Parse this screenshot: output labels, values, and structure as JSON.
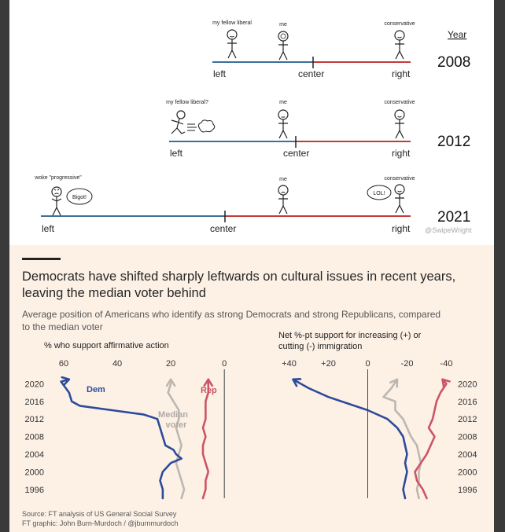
{
  "meme": {
    "year_header": "Year",
    "rows": [
      {
        "year": "2008",
        "left": "left",
        "center": "center",
        "right": "right",
        "labels": [
          "my fellow liberal",
          "me",
          "conservative"
        ]
      },
      {
        "year": "2012",
        "left": "left",
        "center": "center",
        "right": "right",
        "labels": [
          "my fellow liberal?",
          "me",
          "conservative"
        ]
      },
      {
        "year": "2021",
        "left": "left",
        "center": "center",
        "right": "right",
        "labels": [
          "woke \"progressive\"",
          "me",
          "conservative"
        ],
        "bubbles": [
          "Bigot!",
          "LOL!"
        ]
      }
    ],
    "handle": "@SwipeWright",
    "colors": {
      "left": "#3d6f99",
      "right": "#c43a3a"
    }
  },
  "ft": {
    "title": "Democrats have shifted sharply leftwards on cultural issues in recent years, leaving the median voter behind",
    "subtitle": "Average position of Americans who identify as strong Democrats and strong Republicans, compared to the median voter",
    "source": "Source: FT analysis of US General Social Survey",
    "credit": "FT graphic: John Burn-Murdoch / @jburnmurdoch"
  },
  "chart_data": [
    {
      "type": "line",
      "title": "% who support affirmative action",
      "x_ticks": [
        60,
        40,
        20,
        0
      ],
      "xlim": [
        65,
        -2
      ],
      "y_ticks": [
        2020,
        2016,
        2012,
        2008,
        2004,
        2000,
        1996
      ],
      "ylim": [
        1994,
        2021.5
      ],
      "series": [
        {
          "name": "Dem",
          "color": "#2d4b9a",
          "points": [
            [
              23,
              1994
            ],
            [
              23,
              1996
            ],
            [
              24,
              1998
            ],
            [
              23,
              2000
            ],
            [
              20,
              2002
            ],
            [
              16,
              2003
            ],
            [
              18,
              2004
            ],
            [
              19,
              2005
            ],
            [
              22,
              2006
            ],
            [
              23,
              2008
            ],
            [
              24,
              2010
            ],
            [
              25,
              2012
            ],
            [
              30,
              2013
            ],
            [
              42,
              2014
            ],
            [
              54,
              2015
            ],
            [
              57,
              2016
            ],
            [
              58,
              2018
            ],
            [
              61,
              2020.5
            ],
            [
              58,
              2021
            ]
          ]
        },
        {
          "name": "Median voter",
          "color": "#bdb7b1",
          "points": [
            [
              16,
              1994
            ],
            [
              15,
              1996
            ],
            [
              16,
              1998
            ],
            [
              17,
              2000
            ],
            [
              18,
              2002
            ],
            [
              17,
              2004
            ],
            [
              16,
              2006
            ],
            [
              17,
              2008
            ],
            [
              18,
              2010
            ],
            [
              17,
              2012
            ],
            [
              17,
              2014
            ],
            [
              19,
              2016
            ],
            [
              21,
              2018
            ],
            [
              20,
              2020
            ],
            [
              20,
              2021
            ]
          ]
        },
        {
          "name": "Rep",
          "color": "#cc5566",
          "points": [
            [
              8,
              1994
            ],
            [
              7,
              1996
            ],
            [
              7,
              1998
            ],
            [
              6,
              2000
            ],
            [
              7,
              2002
            ],
            [
              8,
              2004
            ],
            [
              8,
              2006
            ],
            [
              7,
              2008
            ],
            [
              8,
              2010
            ],
            [
              7,
              2012
            ],
            [
              7,
              2014
            ],
            [
              7,
              2016
            ],
            [
              6,
              2018
            ],
            [
              6,
              2020
            ],
            [
              6,
              2021
            ]
          ]
        }
      ]
    },
    {
      "type": "line",
      "title": "Net %-pt support for increasing (+) or cutting (-) immigration",
      "x_ticks": [
        "+40",
        "+20",
        "0",
        "-20",
        "-40"
      ],
      "x_tick_values": [
        40,
        20,
        0,
        -20,
        -40
      ],
      "xlim": [
        43,
        -45
      ],
      "y_ticks": [
        2020,
        2016,
        2012,
        2008,
        2004,
        2000,
        1996
      ],
      "ylim": [
        1994,
        2021.5
      ],
      "series": [
        {
          "name": "Dem",
          "color": "#2d4b9a",
          "points": [
            [
              -19,
              1994
            ],
            [
              -18,
              1996
            ],
            [
              -19,
              1998
            ],
            [
              -20,
              2000
            ],
            [
              -19,
              2002
            ],
            [
              -20,
              2004
            ],
            [
              -19,
              2006
            ],
            [
              -18,
              2008
            ],
            [
              -15,
              2010
            ],
            [
              -10,
              2012
            ],
            [
              0,
              2014
            ],
            [
              20,
              2017
            ],
            [
              30,
              2019
            ],
            [
              38,
              2021
            ]
          ]
        },
        {
          "name": "Median voter",
          "color": "#bdb7b1",
          "points": [
            [
              -26,
              1994
            ],
            [
              -25,
              1996
            ],
            [
              -26,
              1998
            ],
            [
              -26,
              2000
            ],
            [
              -27,
              2002
            ],
            [
              -26,
              2004
            ],
            [
              -25,
              2006
            ],
            [
              -22,
              2008
            ],
            [
              -20,
              2010
            ],
            [
              -18,
              2012
            ],
            [
              -14,
              2014
            ],
            [
              -14,
              2016
            ],
            [
              -8,
              2017
            ],
            [
              -12,
              2019
            ],
            [
              -15,
              2021
            ]
          ]
        },
        {
          "name": "Rep",
          "color": "#cc5566",
          "points": [
            [
              -30,
              1994
            ],
            [
              -28,
              1996
            ],
            [
              -25,
              1998
            ],
            [
              -24,
              2000
            ],
            [
              -27,
              2002
            ],
            [
              -30,
              2004
            ],
            [
              -32,
              2006
            ],
            [
              -34,
              2008
            ],
            [
              -31,
              2010
            ],
            [
              -33,
              2012
            ],
            [
              -34,
              2014
            ],
            [
              -35,
              2016
            ],
            [
              -37,
              2018
            ],
            [
              -40,
              2020
            ],
            [
              -38,
              2021
            ]
          ]
        }
      ]
    }
  ]
}
